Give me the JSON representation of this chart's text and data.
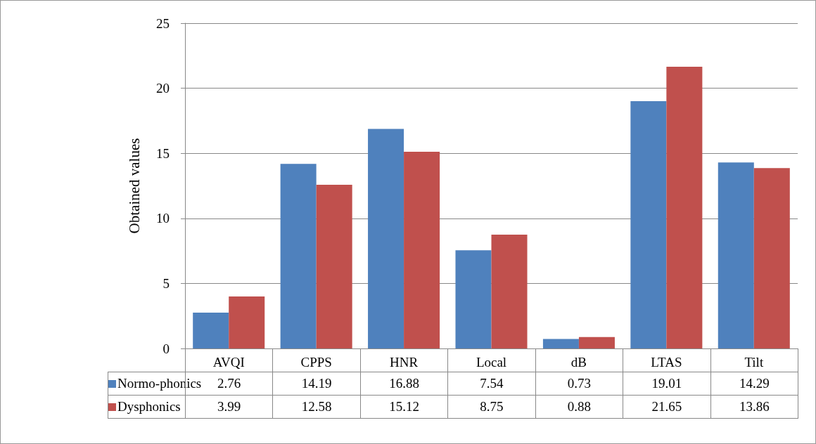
{
  "chart_data": {
    "type": "bar",
    "ylabel": "Obtained values",
    "categories": [
      "AVQI",
      "CPPS",
      "HNR",
      "Local",
      "dB",
      "LTAS",
      "Tilt"
    ],
    "series": [
      {
        "name": "Normo-phonics",
        "color": "#4f81bd",
        "values": [
          2.76,
          14.19,
          16.88,
          7.54,
          0.73,
          19.01,
          14.29
        ]
      },
      {
        "name": "Dysphonics",
        "color": "#c0504d",
        "values": [
          3.99,
          12.58,
          15.12,
          8.75,
          0.88,
          21.65,
          13.86
        ]
      }
    ],
    "ylim": [
      0,
      25
    ],
    "yticks": [
      0,
      5,
      10,
      15,
      20,
      25
    ],
    "grid": "y",
    "legend": "bottom left",
    "data_labels": true
  }
}
